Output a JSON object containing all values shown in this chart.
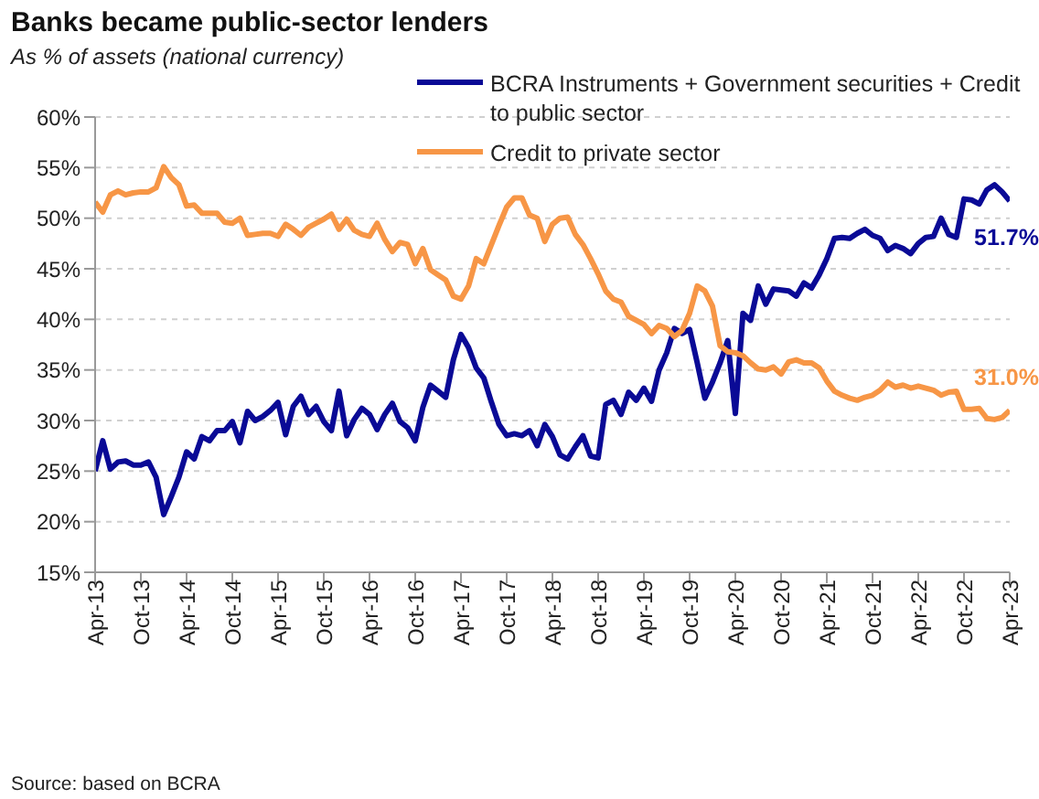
{
  "chart_data": {
    "type": "line",
    "title": "Banks became public-sector lenders",
    "subtitle": "As % of assets (national currency)",
    "annotations": [
      {
        "text": "51.7%",
        "x": "2023-04",
        "y": 51.7
      },
      {
        "text": "31.0%",
        "x": "2023-04",
        "y": 31.0
      },
      "Source: based on BCRA"
    ],
    "x": [
      "2013-04",
      "2013-05",
      "2013-06",
      "2013-07",
      "2013-08",
      "2013-09",
      "2013-10",
      "2013-11",
      "2013-12",
      "2014-01",
      "2014-02",
      "2014-03",
      "2014-04",
      "2014-05",
      "2014-06",
      "2014-07",
      "2014-08",
      "2014-09",
      "2014-10",
      "2014-11",
      "2014-12",
      "2015-01",
      "2015-02",
      "2015-03",
      "2015-04",
      "2015-05",
      "2015-06",
      "2015-07",
      "2015-08",
      "2015-09",
      "2015-10",
      "2015-11",
      "2015-12",
      "2016-01",
      "2016-02",
      "2016-03",
      "2016-04",
      "2016-05",
      "2016-06",
      "2016-07",
      "2016-08",
      "2016-09",
      "2016-10",
      "2016-11",
      "2016-12",
      "2017-01",
      "2017-02",
      "2017-03",
      "2017-04",
      "2017-05",
      "2017-06",
      "2017-07",
      "2017-08",
      "2017-09",
      "2017-10",
      "2017-11",
      "2017-12",
      "2018-01",
      "2018-02",
      "2018-03",
      "2018-04",
      "2018-05",
      "2018-06",
      "2018-07",
      "2018-08",
      "2018-09",
      "2018-10",
      "2018-11",
      "2018-12",
      "2019-01",
      "2019-02",
      "2019-03",
      "2019-04",
      "2019-05",
      "2019-06",
      "2019-07",
      "2019-08",
      "2019-09",
      "2019-10",
      "2019-11",
      "2019-12",
      "2020-01",
      "2020-02",
      "2020-03",
      "2020-04",
      "2020-05",
      "2020-06",
      "2020-07",
      "2020-08",
      "2020-09",
      "2020-10",
      "2020-11",
      "2020-12",
      "2021-01",
      "2021-02",
      "2021-03",
      "2021-04",
      "2021-05",
      "2021-06",
      "2021-07",
      "2021-08",
      "2021-09",
      "2021-10",
      "2021-11",
      "2021-12",
      "2022-01",
      "2022-02",
      "2022-03",
      "2022-04",
      "2022-05",
      "2022-06",
      "2022-07",
      "2022-08",
      "2022-09",
      "2022-10",
      "2022-11",
      "2022-12",
      "2023-01",
      "2023-02",
      "2023-03",
      "2023-04"
    ],
    "series": [
      {
        "name": "BCRA Instruments + Government securities + Credit to public sector",
        "color": "#0a0a96",
        "values": [
          25.0,
          28.0,
          25.2,
          25.9,
          26.0,
          25.6,
          25.6,
          25.9,
          24.4,
          20.7,
          22.5,
          24.4,
          26.9,
          26.2,
          28.4,
          28.0,
          29.0,
          29.0,
          29.9,
          27.8,
          30.9,
          30.0,
          30.4,
          31.0,
          31.8,
          28.6,
          31.4,
          32.4,
          30.6,
          31.4,
          29.9,
          29.0,
          32.9,
          28.5,
          30.1,
          31.2,
          30.6,
          29.1,
          30.6,
          31.7,
          29.9,
          29.3,
          28.0,
          31.3,
          33.5,
          32.9,
          32.3,
          36.0,
          38.5,
          37.2,
          35.2,
          34.2,
          31.8,
          29.6,
          28.5,
          28.7,
          28.5,
          29.0,
          27.5,
          29.6,
          28.4,
          26.6,
          26.2,
          27.4,
          28.5,
          26.5,
          26.3,
          31.6,
          32.0,
          30.6,
          32.8,
          32.0,
          33.2,
          31.9,
          35.0,
          36.7,
          39.1,
          38.6,
          39.0,
          35.7,
          32.2,
          33.8,
          35.7,
          37.9,
          30.7,
          40.6,
          39.9,
          43.3,
          41.5,
          43.0,
          42.9,
          42.8,
          42.3,
          43.6,
          43.1,
          44.4,
          46.0,
          48.0,
          48.1,
          48.0,
          48.5,
          48.9,
          48.3,
          48.0,
          46.8,
          47.3,
          47.0,
          46.5,
          47.5,
          48.1,
          48.2,
          50.0,
          48.4,
          48.1,
          51.9,
          51.8,
          51.4,
          52.8,
          53.3,
          52.6,
          51.7
        ]
      },
      {
        "name": "Credit to private sector",
        "color": "#f79646",
        "values": [
          51.6,
          50.6,
          52.3,
          52.7,
          52.3,
          52.5,
          52.6,
          52.6,
          53.0,
          55.1,
          54.0,
          53.3,
          51.2,
          51.3,
          50.5,
          50.5,
          50.5,
          49.6,
          49.5,
          50.0,
          48.3,
          48.4,
          48.5,
          48.5,
          48.2,
          49.4,
          48.9,
          48.3,
          49.1,
          49.5,
          49.9,
          50.4,
          48.9,
          49.9,
          48.8,
          48.4,
          48.2,
          49.5,
          47.9,
          46.7,
          47.6,
          47.4,
          45.5,
          47.0,
          44.9,
          44.4,
          43.9,
          42.3,
          42.0,
          43.3,
          46.0,
          45.5,
          47.4,
          49.3,
          51.1,
          52.0,
          52.0,
          50.3,
          50.0,
          47.7,
          49.4,
          50.0,
          50.1,
          48.4,
          47.4,
          46.0,
          44.5,
          42.8,
          42.0,
          41.7,
          40.3,
          39.9,
          39.5,
          38.6,
          39.4,
          39.1,
          38.3,
          38.9,
          40.6,
          43.3,
          42.8,
          41.3,
          37.4,
          36.8,
          36.7,
          36.4,
          35.7,
          35.1,
          35.0,
          35.3,
          34.6,
          35.8,
          36.0,
          35.7,
          35.7,
          35.2,
          33.9,
          32.9,
          32.5,
          32.2,
          32.0,
          32.3,
          32.5,
          33.0,
          33.8,
          33.3,
          33.5,
          33.2,
          33.4,
          33.2,
          33.0,
          32.5,
          32.8,
          32.9,
          31.1,
          31.1,
          31.2,
          30.2,
          30.1,
          30.3,
          31.0
        ]
      }
    ],
    "xlim": [
      "2013-04",
      "2023-04"
    ],
    "xticks": [
      {
        "value": "2013-04",
        "label": "Apr-13"
      },
      {
        "value": "2013-10",
        "label": "Oct-13"
      },
      {
        "value": "2014-04",
        "label": "Apr-14"
      },
      {
        "value": "2014-10",
        "label": "Oct-14"
      },
      {
        "value": "2015-04",
        "label": "Apr-15"
      },
      {
        "value": "2015-10",
        "label": "Oct-15"
      },
      {
        "value": "2016-04",
        "label": "Apr-16"
      },
      {
        "value": "2016-10",
        "label": "Oct-16"
      },
      {
        "value": "2017-04",
        "label": "Apr-17"
      },
      {
        "value": "2017-10",
        "label": "Oct-17"
      },
      {
        "value": "2018-04",
        "label": "Apr-18"
      },
      {
        "value": "2018-10",
        "label": "Oct-18"
      },
      {
        "value": "2019-04",
        "label": "Apr-19"
      },
      {
        "value": "2019-10",
        "label": "Oct-19"
      },
      {
        "value": "2020-04",
        "label": "Apr-20"
      },
      {
        "value": "2020-10",
        "label": "Oct-20"
      },
      {
        "value": "2021-04",
        "label": "Apr-21"
      },
      {
        "value": "2021-10",
        "label": "Oct-21"
      },
      {
        "value": "2022-04",
        "label": "Apr-22"
      },
      {
        "value": "2022-10",
        "label": "Oct-22"
      },
      {
        "value": "2023-04",
        "label": "Apr-23"
      }
    ],
    "ylim": [
      15,
      60
    ],
    "yticks": [
      {
        "value": 15,
        "label": "15%"
      },
      {
        "value": 20,
        "label": "20%"
      },
      {
        "value": 25,
        "label": "25%"
      },
      {
        "value": 30,
        "label": "30%"
      },
      {
        "value": 35,
        "label": "35%"
      },
      {
        "value": 40,
        "label": "40%"
      },
      {
        "value": 45,
        "label": "45%"
      },
      {
        "value": 50,
        "label": "50%"
      },
      {
        "value": 55,
        "label": "55%"
      },
      {
        "value": 60,
        "label": "60%"
      }
    ],
    "grid": "y",
    "legend": "top right",
    "marker": "none",
    "line_style": "solid"
  }
}
